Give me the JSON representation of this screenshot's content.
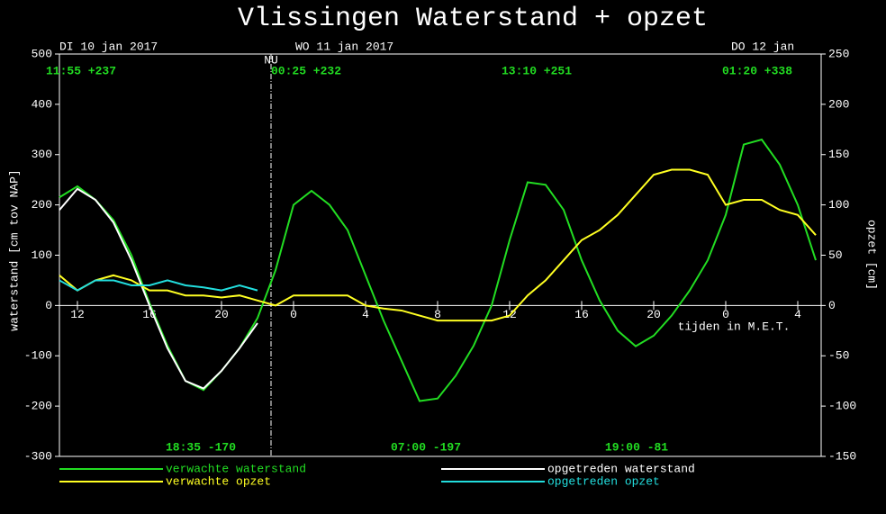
{
  "chart_data": {
    "type": "line",
    "title": "Vlissingen  Waterstand + opzet",
    "dates": [
      "DI 10 jan 2017",
      "WO 11 jan 2017",
      "DO 12 jan"
    ],
    "now": {
      "label": "NU",
      "x": 22.75
    },
    "annotations": [
      "11:55 +237",
      "00:25 +232",
      "13:10 +251",
      "01:20 +338",
      "18:35 -170",
      "07:00 -197",
      "19:00  -81"
    ],
    "x_label": "tijden in M.E.T.",
    "y_label": "waterstand [cm tov NAP]",
    "y2_label": "opzet [cm]",
    "xlim": [
      11,
      53.3
    ],
    "xticks": [
      12,
      16,
      20,
      {
        "value": 24,
        "label": "0"
      },
      {
        "value": 28,
        "label": "4"
      },
      {
        "value": 32,
        "label": "8"
      },
      {
        "value": 36,
        "label": "12"
      },
      {
        "value": 40,
        "label": "16"
      },
      {
        "value": 44,
        "label": "20"
      },
      {
        "value": 48,
        "label": "0"
      },
      {
        "value": 52,
        "label": "4"
      }
    ],
    "ylim": [
      -300,
      500
    ],
    "yticks": [
      -300,
      -200,
      -100,
      0,
      100,
      200,
      300,
      400,
      500
    ],
    "y2lim": [
      -150,
      250
    ],
    "y2ticks": [
      -150,
      -100,
      -50,
      0,
      50,
      100,
      150,
      200,
      250
    ],
    "x": [
      11,
      12,
      13,
      14,
      15,
      16,
      17,
      18,
      19,
      20,
      21,
      22,
      23,
      24,
      25,
      26,
      27,
      28,
      29,
      30,
      31,
      32,
      33,
      34,
      35,
      36,
      37,
      38,
      39,
      40,
      41,
      42,
      43,
      44,
      45,
      46,
      47,
      48,
      49,
      50,
      51,
      52,
      53
    ],
    "series": [
      {
        "name": "verwachte waterstand",
        "color": "#22dd22",
        "values": [
          215,
          237,
          210,
          170,
          100,
          5,
          -80,
          -150,
          -168,
          -130,
          -85,
          -25,
          70,
          200,
          228,
          200,
          150,
          60,
          -30,
          -110,
          -190,
          -185,
          -140,
          -80,
          0,
          130,
          245,
          240,
          190,
          90,
          10,
          -50,
          -81,
          -60,
          -20,
          30,
          90,
          180,
          320,
          330,
          280,
          200,
          90
        ]
      },
      {
        "name": "opgetreden waterstand",
        "color": "#ffffff",
        "values": [
          190,
          232,
          210,
          165,
          90,
          0,
          -85,
          -150,
          -165,
          -130,
          -85,
          -35,
          null,
          null,
          null,
          null,
          null,
          null,
          null,
          null,
          null,
          null,
          null,
          null,
          null,
          null,
          null,
          null,
          null,
          null,
          null,
          null,
          null,
          null,
          null,
          null,
          null,
          null,
          null,
          null,
          null,
          null,
          null
        ]
      },
      {
        "name": "verwachte opzet",
        "color": "#ffff22",
        "axis": "y2",
        "values": [
          30,
          15,
          25,
          30,
          25,
          15,
          15,
          10,
          10,
          8,
          10,
          5,
          0,
          10,
          10,
          10,
          10,
          0,
          -3,
          -5,
          -10,
          -15,
          -15,
          -15,
          -15,
          -10,
          10,
          25,
          45,
          65,
          75,
          90,
          110,
          130,
          135,
          135,
          130,
          100,
          105,
          105,
          95,
          90,
          70
        ]
      },
      {
        "name": "opgetreden opzet",
        "color": "#22dddd",
        "axis": "y2",
        "values": [
          25,
          15,
          25,
          25,
          20,
          20,
          25,
          20,
          18,
          15,
          20,
          15,
          null,
          null,
          null,
          null,
          null,
          null,
          null,
          null,
          null,
          null,
          null,
          null,
          null,
          null,
          null,
          null,
          null,
          null,
          null,
          null,
          null,
          null,
          null,
          null,
          null,
          null,
          null,
          null,
          null,
          null,
          null
        ]
      }
    ]
  }
}
